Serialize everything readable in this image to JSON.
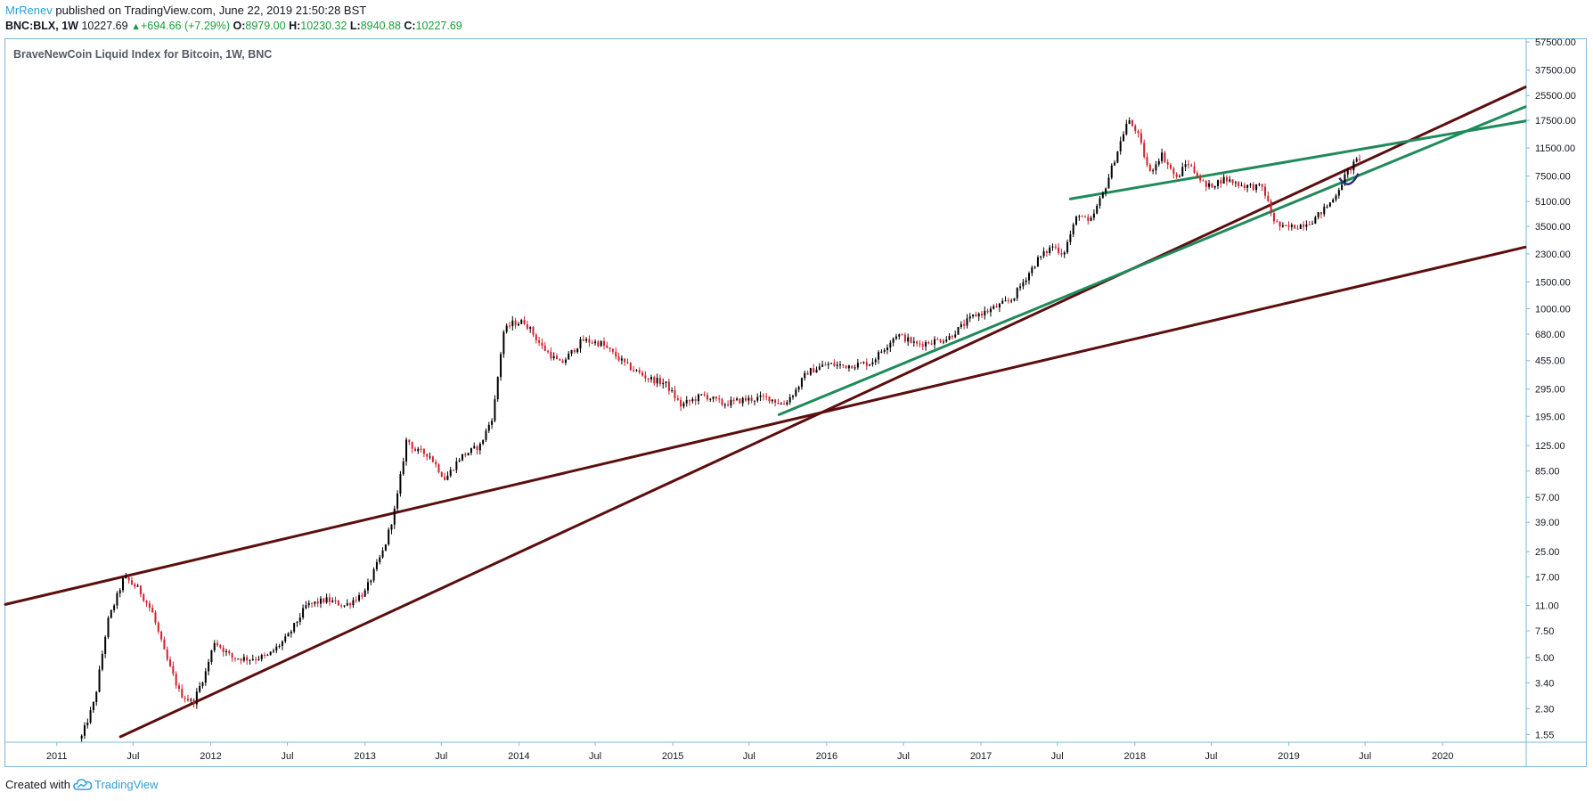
{
  "header": {
    "author": "MrRenev",
    "published_text": "published on TradingView.com, June 22, 2019 21:50:28 BST",
    "symbol": "BNC:BLX, 1W",
    "last_price": "10227.69",
    "change_icon": "up-triangle-icon",
    "change": "+694.66 (+7.29%)",
    "o_label": "O:",
    "o_value": "8979.00",
    "h_label": "H:",
    "h_value": "10230.32",
    "l_label": "L:",
    "l_value": "8940.88",
    "c_label": "C:",
    "c_value": "10227.69"
  },
  "footer": {
    "created_with": "Created with",
    "logo_icon": "tradingview-cloud-icon",
    "brand": "TradingView"
  },
  "colors": {
    "bull": "#000000",
    "bear": "#d0202c",
    "trend_dark": "#5c0e0e",
    "trend_green": "#1f8a5a",
    "arc": "#2b2d7a",
    "frame": "#7fb8d8",
    "brand": "#2e9fd6",
    "positive": "#1b9e3a"
  },
  "chart_data": {
    "type": "candlestick",
    "title": "BraveNewCoin Liquid Index for Bitcoin, 1W, BNC",
    "y_scale": "log",
    "ylim": [
      1.4,
      60000
    ],
    "xlim": [
      "2010-09-01",
      "2020-07-15"
    ],
    "y_ticks": [
      "57500.00",
      "37500.00",
      "25500.00",
      "17500.00",
      "11500.00",
      "7500.00",
      "5100.00",
      "3500.00",
      "2300.00",
      "1500.00",
      "1000.00",
      "680.00",
      "455.00",
      "295.00",
      "195.00",
      "125.00",
      "85.00",
      "57.00",
      "39.00",
      "25.00",
      "17.00",
      "11.00",
      "7.50",
      "5.00",
      "3.40",
      "2.30",
      "1.55"
    ],
    "x_ticks": [
      {
        "label": "2011",
        "date": "2011-01-01"
      },
      {
        "label": "Jul",
        "date": "2011-07-01"
      },
      {
        "label": "2012",
        "date": "2012-01-01"
      },
      {
        "label": "Jul",
        "date": "2012-07-01"
      },
      {
        "label": "2013",
        "date": "2013-01-01"
      },
      {
        "label": "Jul",
        "date": "2013-07-01"
      },
      {
        "label": "2014",
        "date": "2014-01-01"
      },
      {
        "label": "Jul",
        "date": "2014-07-01"
      },
      {
        "label": "2015",
        "date": "2015-01-01"
      },
      {
        "label": "Jul",
        "date": "2015-07-01"
      },
      {
        "label": "2016",
        "date": "2016-01-01"
      },
      {
        "label": "Jul",
        "date": "2016-07-01"
      },
      {
        "label": "2017",
        "date": "2017-01-01"
      },
      {
        "label": "Jul",
        "date": "2017-07-01"
      },
      {
        "label": "2018",
        "date": "2018-01-01"
      },
      {
        "label": "Jul",
        "date": "2018-07-01"
      },
      {
        "label": "2019",
        "date": "2019-01-01"
      },
      {
        "label": "Jul",
        "date": "2019-07-01"
      },
      {
        "label": "2020",
        "date": "2020-01-01"
      }
    ],
    "price_path": [
      [
        "2011-03-01",
        1.5
      ],
      [
        "2011-04-01",
        2.6
      ],
      [
        "2011-05-01",
        8.5
      ],
      [
        "2011-06-10",
        17
      ],
      [
        "2011-07-15",
        14
      ],
      [
        "2011-08-15",
        10
      ],
      [
        "2011-09-15",
        5.2
      ],
      [
        "2011-10-20",
        2.9
      ],
      [
        "2011-11-20",
        2.5
      ],
      [
        "2011-12-20",
        4.0
      ],
      [
        "2012-01-10",
        6.4
      ],
      [
        "2012-02-20",
        5.0
      ],
      [
        "2012-04-01",
        4.9
      ],
      [
        "2012-05-15",
        5.1
      ],
      [
        "2012-07-01",
        6.8
      ],
      [
        "2012-08-15",
        11
      ],
      [
        "2012-10-01",
        12
      ],
      [
        "2012-11-15",
        11
      ],
      [
        "2013-01-01",
        13.5
      ],
      [
        "2013-02-15",
        26
      ],
      [
        "2013-03-15",
        50
      ],
      [
        "2013-04-10",
        140
      ],
      [
        "2013-05-01",
        115
      ],
      [
        "2013-06-01",
        110
      ],
      [
        "2013-07-10",
        75
      ],
      [
        "2013-08-15",
        105
      ],
      [
        "2013-10-01",
        125
      ],
      [
        "2013-11-01",
        200
      ],
      [
        "2013-11-25",
        700
      ],
      [
        "2013-12-15",
        800
      ],
      [
        "2014-01-15",
        820
      ],
      [
        "2014-02-25",
        560
      ],
      [
        "2014-04-10",
        430
      ],
      [
        "2014-06-01",
        620
      ],
      [
        "2014-07-15",
        590
      ],
      [
        "2014-09-15",
        420
      ],
      [
        "2014-11-01",
        350
      ],
      [
        "2014-12-15",
        320
      ],
      [
        "2015-01-20",
        230
      ],
      [
        "2015-03-15",
        270
      ],
      [
        "2015-05-01",
        235
      ],
      [
        "2015-06-15",
        250
      ],
      [
        "2015-08-15",
        260
      ],
      [
        "2015-09-20",
        232
      ],
      [
        "2015-10-20",
        290
      ],
      [
        "2015-11-15",
        380
      ],
      [
        "2016-01-01",
        430
      ],
      [
        "2016-02-15",
        420
      ],
      [
        "2016-04-15",
        440
      ],
      [
        "2016-06-15",
        680
      ],
      [
        "2016-08-01",
        580
      ],
      [
        "2016-10-15",
        640
      ],
      [
        "2016-12-15",
        900
      ],
      [
        "2017-01-15",
        960
      ],
      [
        "2017-03-15",
        1150
      ],
      [
        "2017-05-15",
        2100
      ],
      [
        "2017-06-20",
        2600
      ],
      [
        "2017-07-15",
        2300
      ],
      [
        "2017-08-20",
        4300
      ],
      [
        "2017-09-15",
        3600
      ],
      [
        "2017-10-20",
        6000
      ],
      [
        "2017-12-15",
        17500
      ],
      [
        "2018-01-05",
        15000
      ],
      [
        "2018-02-05",
        7800
      ],
      [
        "2018-03-05",
        10500
      ],
      [
        "2018-04-10",
        7200
      ],
      [
        "2018-05-05",
        9300
      ],
      [
        "2018-06-20",
        6300
      ],
      [
        "2018-08-01",
        7200
      ],
      [
        "2018-09-15",
        6500
      ],
      [
        "2018-11-01",
        6300
      ],
      [
        "2018-11-25",
        3900
      ],
      [
        "2018-12-15",
        3400
      ],
      [
        "2019-01-20",
        3500
      ],
      [
        "2019-03-01",
        3850
      ],
      [
        "2019-04-15",
        5200
      ],
      [
        "2019-05-20",
        8000
      ],
      [
        "2019-06-22",
        10227
      ]
    ],
    "trendlines": [
      {
        "color": "dark",
        "p1": [
          "2010-09-01",
          11.2
        ],
        "p2": [
          "2020-07-15",
          2550
        ]
      },
      {
        "color": "dark",
        "p1": [
          "2011-06-01",
          1.5
        ],
        "p2": [
          "2020-07-15",
          29000
        ]
      },
      {
        "color": "green",
        "p1": [
          "2015-09-10",
          200
        ],
        "p2": [
          "2020-07-15",
          21500
        ]
      },
      {
        "color": "green",
        "p1": [
          "2017-08-01",
          5300
        ],
        "p2": [
          "2020-07-15",
          17300
        ]
      }
    ],
    "annotation_arc": {
      "from": [
        "2019-05-01",
        7300
      ],
      "to": [
        "2019-06-15",
        7800
      ],
      "depth_value": 6700
    }
  }
}
